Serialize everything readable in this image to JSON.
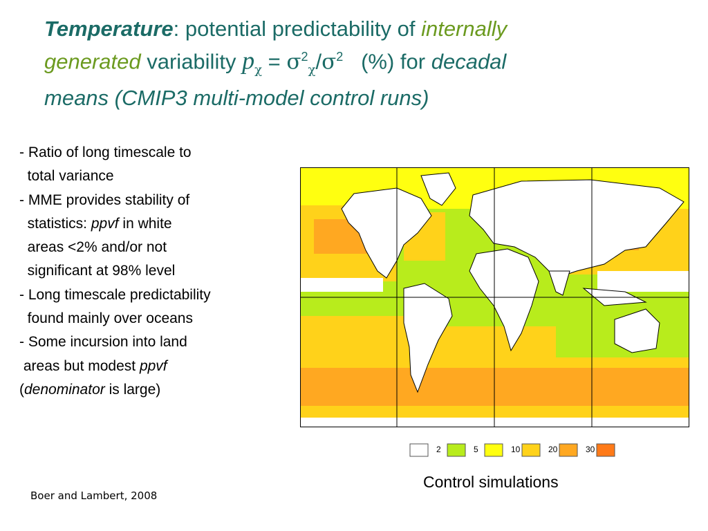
{
  "title": {
    "w1": "Temperature",
    "w2": ": potential predictability of ",
    "w3": "internally",
    "w4": "generated",
    "w5": " variability ",
    "p": "p",
    "chi": "χ",
    "eq": " = ",
    "sigma": "σ",
    "two": "2",
    "slash": "/",
    "pct": "(%) for ",
    "w6": "decadal",
    "w7": "means (CMIP3 multi-model control runs)"
  },
  "bullets": {
    "l1": "- Ratio of long timescale to",
    "l2": "total variance",
    "l3": "- MME provides stability of",
    "l4a": "statistics: ",
    "l4b": "ppvf",
    "l4c": " in white",
    "l5": "areas <2% and/or not",
    "l6": "significant at 98% level",
    "l7": "- Long timescale predictability",
    "l8": "found mainly over oceans",
    "l9": "- Some incursion into land",
    "l10a": "areas but modest ",
    "l10b": "ppvf",
    "l11a": "(",
    "l11b": "denominator",
    "l11c": " is large)"
  },
  "legend": {
    "labels": [
      "2",
      "5",
      "10",
      "20",
      "30"
    ],
    "colors": [
      "#ffffff",
      "#b8ec1c",
      "#ffff10",
      "#ffd21a",
      "#ffa821",
      "#ff7a18"
    ]
  },
  "map_colors": {
    "land": "#ffffff",
    "ocean_low": "#b8ec1c",
    "ocean_mid": "#ffff10",
    "ocean_high": "#ffd21a",
    "ocean_top": "#ffa821"
  },
  "caption": "Control simulations",
  "citation": "Boer and Lambert, 2008"
}
